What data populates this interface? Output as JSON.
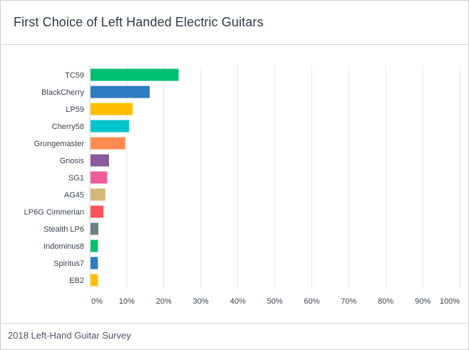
{
  "chart_data": {
    "type": "bar",
    "orientation": "horizontal",
    "title": "First Choice of Left Handed Electric Guitars",
    "footer": "2018 Left-Hand Guitar Survey",
    "categories": [
      "TC59",
      "BlackCherry",
      "LP59",
      "Cherry58",
      "Grungemaster",
      "Gnosis",
      "SG1",
      "AG45",
      "LP6G Cimmerian",
      "Stealth LP6",
      "Indominus8",
      "Spiritus7",
      "EB2"
    ],
    "values": [
      23.8,
      16.0,
      11.4,
      10.4,
      9.4,
      5.0,
      4.5,
      4.0,
      3.5,
      2.1,
      2.0,
      2.0,
      2.0
    ],
    "colors": [
      "#00bf6f",
      "#2f7bbf",
      "#ffbf00",
      "#00c5cc",
      "#ff8b4f",
      "#8b5b9e",
      "#f05b9c",
      "#d1b876",
      "#ff515e",
      "#6b7f83",
      "#00bf6f",
      "#2f7bbf",
      "#ffbf00"
    ],
    "xlim": [
      0,
      100
    ],
    "ticks": [
      0,
      10,
      20,
      30,
      40,
      50,
      60,
      70,
      80,
      90,
      100
    ],
    "tick_labels": [
      "0%",
      "10%",
      "20%",
      "30%",
      "40%",
      "50%",
      "60%",
      "70%",
      "80%",
      "90%",
      "100%"
    ],
    "grid": true,
    "xlabel": "",
    "ylabel": ""
  }
}
